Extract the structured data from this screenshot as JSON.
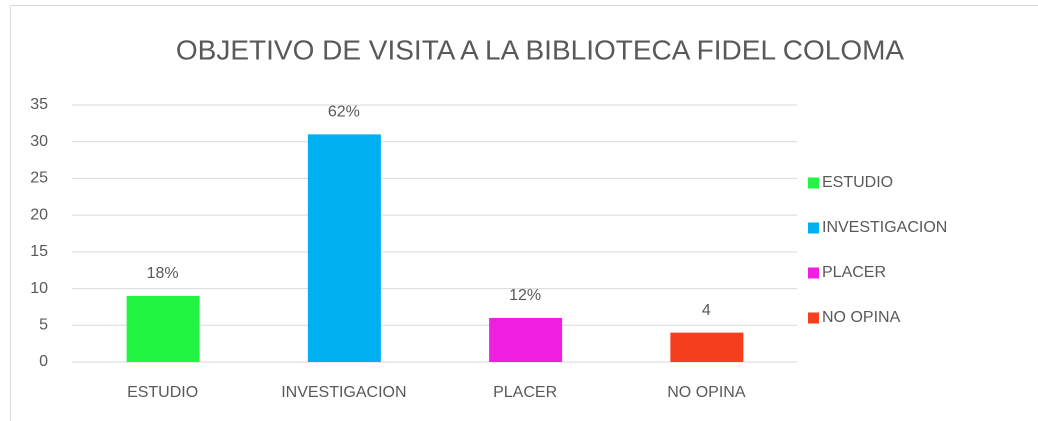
{
  "chart_data": {
    "type": "bar",
    "title": "OBJETIVO DE VISITA A LA BIBLIOTECA FIDEL COLOMA",
    "categories": [
      "ESTUDIO",
      "INVESTIGACION",
      "PLACER",
      "NO OPINA"
    ],
    "values": [
      9,
      31,
      6,
      4
    ],
    "value_labels": [
      "18%",
      "62%",
      "12%",
      "4"
    ],
    "colors": [
      "#22f443",
      "#00b0f0",
      "#f01ee0",
      "#f43e1e"
    ],
    "ylim": [
      0,
      35
    ],
    "yticks": [
      0,
      5,
      10,
      15,
      20,
      25,
      30,
      35
    ],
    "grid": true,
    "legend": "right"
  }
}
